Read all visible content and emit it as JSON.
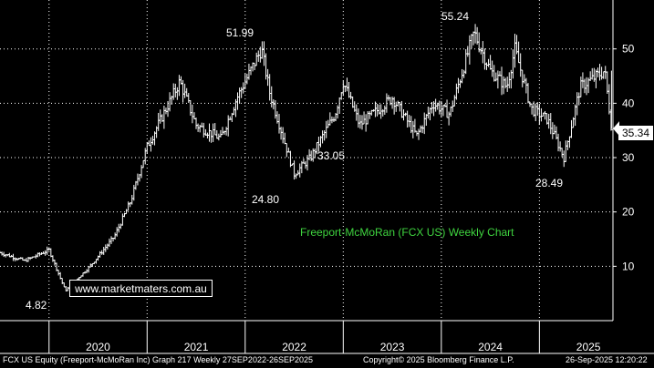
{
  "chart_data": {
    "type": "bar",
    "subtype": "weekly-ohlc",
    "title": "Freeport-McMoRan (FCX US) Weekly Chart",
    "watermark": "www.marketmaters.com.au",
    "x_axis": {
      "tick_labels": [
        "2020",
        "2021",
        "2022",
        "2023",
        "2024",
        "2025"
      ],
      "range": [
        "2019-07",
        "2025-09"
      ]
    },
    "y_axis": {
      "tick_labels": [
        "10",
        "20",
        "30",
        "40",
        "50"
      ],
      "range": [
        0,
        59
      ],
      "side": "right"
    },
    "grid": true,
    "annotations": [
      {
        "label": "4.82",
        "date": "2020-03",
        "value": 4.82
      },
      {
        "label": "51.99",
        "date": "2022-03",
        "value": 51.99
      },
      {
        "label": "24.80",
        "date": "2022-07",
        "value": 24.8
      },
      {
        "label": "33.05",
        "date": "2023-03",
        "value": 33.05
      },
      {
        "label": "55.24",
        "date": "2024-05",
        "value": 55.24
      },
      {
        "label": "28.49",
        "date": "2025-04",
        "value": 28.49
      }
    ],
    "last_price": {
      "label": "35.34",
      "value": 35.34
    },
    "approx_path": [
      [
        "2019-07",
        12.5
      ],
      [
        "2019-10",
        11.0
      ],
      [
        "2020-01",
        13.0
      ],
      [
        "2020-03",
        5.5
      ],
      [
        "2020-06",
        10.0
      ],
      [
        "2020-09",
        15.5
      ],
      [
        "2020-11",
        22.0
      ],
      [
        "2021-01",
        32.0
      ],
      [
        "2021-05",
        44.0
      ],
      [
        "2021-07",
        36.0
      ],
      [
        "2021-10",
        33.5
      ],
      [
        "2021-12",
        41.0
      ],
      [
        "2022-03",
        50.0
      ],
      [
        "2022-04",
        42.0
      ],
      [
        "2022-07",
        27.0
      ],
      [
        "2022-09",
        30.0
      ],
      [
        "2022-12",
        38.0
      ],
      [
        "2023-01",
        44.0
      ],
      [
        "2023-03",
        36.0
      ],
      [
        "2023-07",
        41.0
      ],
      [
        "2023-10",
        34.0
      ],
      [
        "2023-12",
        40.0
      ],
      [
        "2024-02",
        38.0
      ],
      [
        "2024-05",
        53.0
      ],
      [
        "2024-07",
        46.0
      ],
      [
        "2024-09",
        43.0
      ],
      [
        "2024-10",
        50.0
      ],
      [
        "2024-12",
        39.0
      ],
      [
        "2025-02",
        37.0
      ],
      [
        "2025-04",
        30.0
      ],
      [
        "2025-06",
        43.0
      ],
      [
        "2025-08",
        45.0
      ],
      [
        "2025-09",
        46.0
      ],
      [
        "2025-09-26",
        35.34
      ]
    ]
  },
  "footer": {
    "left": "FCX US Equity (Freeport-McMoRan Inc) Graph 217  Weekly 27SEP2022-26SEP2025",
    "center": "Copyright© 2025 Bloomberg Finance L.P.",
    "right": "26-Sep-2025 12:20:22"
  },
  "colors": {
    "background": "#000000",
    "bars": "#ffffff",
    "grid": "#ffffff",
    "title": "#3fd43f"
  }
}
